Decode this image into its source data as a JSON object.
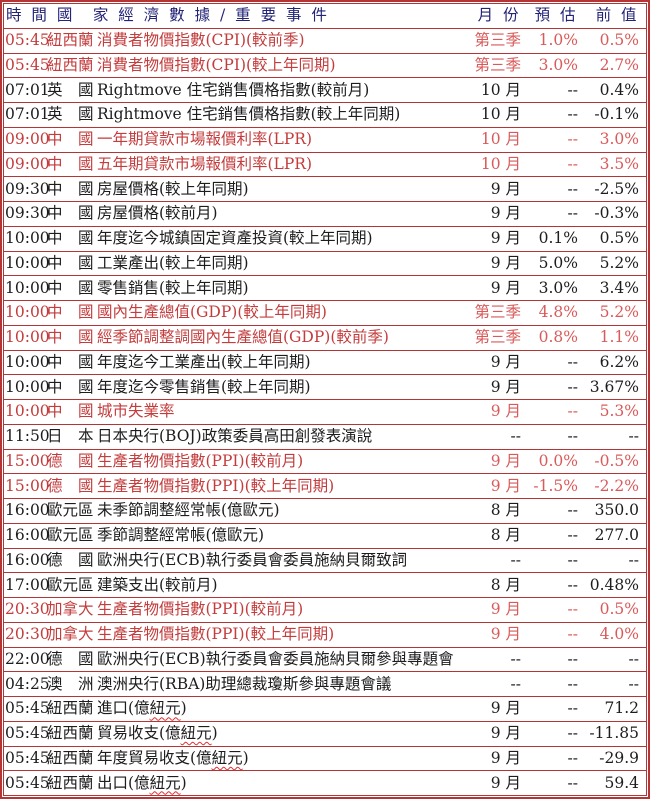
{
  "table": {
    "header": {
      "time_country_event": "時 間 國　家 經 濟 數 據 / 重 要 事 件",
      "month": "月 份",
      "estimate": "預 估",
      "previous": "前 值"
    },
    "colors": {
      "border": "#b43535",
      "text": "#1d1d1d",
      "header_text": "#232377",
      "highlight_text": "#c43c3c",
      "highlight_value": "#d95a5a",
      "background": "#ffffff"
    },
    "rows": [
      {
        "time": "05:45",
        "country": "紐西蘭",
        "event": "消費者物價指數(CPI)(較前季)",
        "month": "第三季",
        "estimate": "1.0%",
        "previous": "0.5%",
        "highlight": true
      },
      {
        "time": "05:45",
        "country": "紐西蘭",
        "event": "消費者物價指數(CPI)(較上年同期)",
        "month": "第三季",
        "estimate": "3.0%",
        "previous": "2.7%",
        "highlight": true
      },
      {
        "time": "07:01",
        "country": "英　國",
        "event": "Rightmove 住宅銷售價格指數(較前月)",
        "month": "10 月",
        "estimate": "--",
        "previous": "0.4%",
        "highlight": false
      },
      {
        "time": "07:01",
        "country": "英　國",
        "event": "Rightmove 住宅銷售價格指數(較上年同期)",
        "month": "10 月",
        "estimate": "--",
        "previous": "-0.1%",
        "highlight": false
      },
      {
        "time": "09:00",
        "country": "中　國",
        "event": "一年期貸款市場報價利率(LPR)",
        "month": "10 月",
        "estimate": "--",
        "previous": "3.0%",
        "highlight": true
      },
      {
        "time": "09:00",
        "country": "中　國",
        "event": "五年期貸款市場報價利率(LPR)",
        "month": "10 月",
        "estimate": "--",
        "previous": "3.5%",
        "highlight": true
      },
      {
        "time": "09:30",
        "country": "中　國",
        "event": "房屋價格(較上年同期)",
        "month": "9 月",
        "estimate": "--",
        "previous": "-2.5%",
        "highlight": false
      },
      {
        "time": "09:30",
        "country": "中　國",
        "event": "房屋價格(較前月)",
        "month": "9 月",
        "estimate": "--",
        "previous": "-0.3%",
        "highlight": false
      },
      {
        "time": "10:00",
        "country": "中　國",
        "event": "年度迄今城鎮固定資產投資(較上年同期)",
        "month": "9 月",
        "estimate": "0.1%",
        "previous": "0.5%",
        "highlight": false
      },
      {
        "time": "10:00",
        "country": "中　國",
        "event": "工業產出(較上年同期)",
        "month": "9 月",
        "estimate": "5.0%",
        "previous": "5.2%",
        "highlight": false
      },
      {
        "time": "10:00",
        "country": "中　國",
        "event": "零售銷售(較上年同期)",
        "month": "9 月",
        "estimate": "3.0%",
        "previous": "3.4%",
        "highlight": false
      },
      {
        "time": "10:00",
        "country": "中　國",
        "event": "國內生產總值(GDP)(較上年同期)",
        "month": "第三季",
        "estimate": "4.8%",
        "previous": "5.2%",
        "highlight": true
      },
      {
        "time": "10:00",
        "country": "中　國",
        "event": "經季節調整調國內生產總值(GDP)(較前季)",
        "month": "第三季",
        "estimate": "0.8%",
        "previous": "1.1%",
        "highlight": true
      },
      {
        "time": "10:00",
        "country": "中　國",
        "event": "年度迄今工業產出(較上年同期)",
        "month": "9 月",
        "estimate": "--",
        "previous": "6.2%",
        "highlight": false
      },
      {
        "time": "10:00",
        "country": "中　國",
        "event": "年度迄今零售銷售(較上年同期)",
        "month": "9 月",
        "estimate": "--",
        "previous": "3.67%",
        "highlight": false
      },
      {
        "time": "10:00",
        "country": "中　國",
        "event": "城市失業率",
        "month": "9 月",
        "estimate": "--",
        "previous": "5.3%",
        "highlight": true
      },
      {
        "time": "11:50",
        "country": "日　本",
        "event": "日本央行(BOJ)政策委員高田創發表演說",
        "month": "--",
        "estimate": "--",
        "previous": "--",
        "highlight": false
      },
      {
        "time": "15:00",
        "country": "德　國",
        "event": "生產者物價指數(PPI)(較前月)",
        "month": "9 月",
        "estimate": "0.0%",
        "previous": "-0.5%",
        "highlight": true
      },
      {
        "time": "15:00",
        "country": "德　國",
        "event": "生產者物價指數(PPI)(較上年同期)",
        "month": "9 月",
        "estimate": "-1.5%",
        "previous": "-2.2%",
        "highlight": true
      },
      {
        "time": "16:00",
        "country": "歐元區",
        "event": "未季節調整經常帳(億歐元)",
        "month": "8 月",
        "estimate": "--",
        "previous": "350.0",
        "highlight": false
      },
      {
        "time": "16:00",
        "country": "歐元區",
        "event": "季節調整經常帳(億歐元)",
        "month": "8 月",
        "estimate": "--",
        "previous": "277.0",
        "highlight": false
      },
      {
        "time": "16:00",
        "country": "德　國",
        "event": "歐洲央行(ECB)執行委員會委員施納貝爾致詞",
        "month": "--",
        "estimate": "--",
        "previous": "--",
        "highlight": false
      },
      {
        "time": "17:00",
        "country": "歐元區",
        "event": "建築支出(較前月)",
        "month": "8 月",
        "estimate": "--",
        "previous": "0.48%",
        "highlight": false
      },
      {
        "time": "20:30",
        "country": "加拿大",
        "event": "生產者物價指數(PPI)(較前月)",
        "month": "9 月",
        "estimate": "--",
        "previous": "0.5%",
        "highlight": true
      },
      {
        "time": "20:30",
        "country": "加拿大",
        "event": "生產者物價指數(PPI)(較上年同期)",
        "month": "9 月",
        "estimate": "--",
        "previous": "4.0%",
        "highlight": true
      },
      {
        "time": "22:00",
        "country": "德　國",
        "event": "歐洲央行(ECB)執行委員會委員施納貝爾參與專題會",
        "month": "--",
        "estimate": "--",
        "previous": "--",
        "highlight": false
      },
      {
        "time": "04:25",
        "country": "澳　洲",
        "event": "澳洲央行(RBA)助理總裁瓊斯參與專題會議",
        "month": "--",
        "estimate": "--",
        "previous": "--",
        "highlight": false
      },
      {
        "time": "05:45",
        "country": "紐西蘭",
        "event": "進口(億紐元)",
        "month": "9 月",
        "estimate": "--",
        "previous": "71.2",
        "highlight": false,
        "wavy": "紐元"
      },
      {
        "time": "05:45",
        "country": "紐西蘭",
        "event": "貿易收支(億紐元)",
        "month": "9 月",
        "estimate": "--",
        "previous": "-11.85",
        "highlight": false,
        "wavy": "紐元"
      },
      {
        "time": "05:45",
        "country": "紐西蘭",
        "event": "年度貿易收支(億紐元)",
        "month": "9 月",
        "estimate": "--",
        "previous": "-29.9",
        "highlight": false,
        "wavy": "紐元"
      },
      {
        "time": "05:45",
        "country": "紐西蘭",
        "event": "出口(億紐元)",
        "month": "9 月",
        "estimate": "--",
        "previous": "59.4",
        "highlight": false,
        "wavy": "紐元"
      }
    ]
  }
}
